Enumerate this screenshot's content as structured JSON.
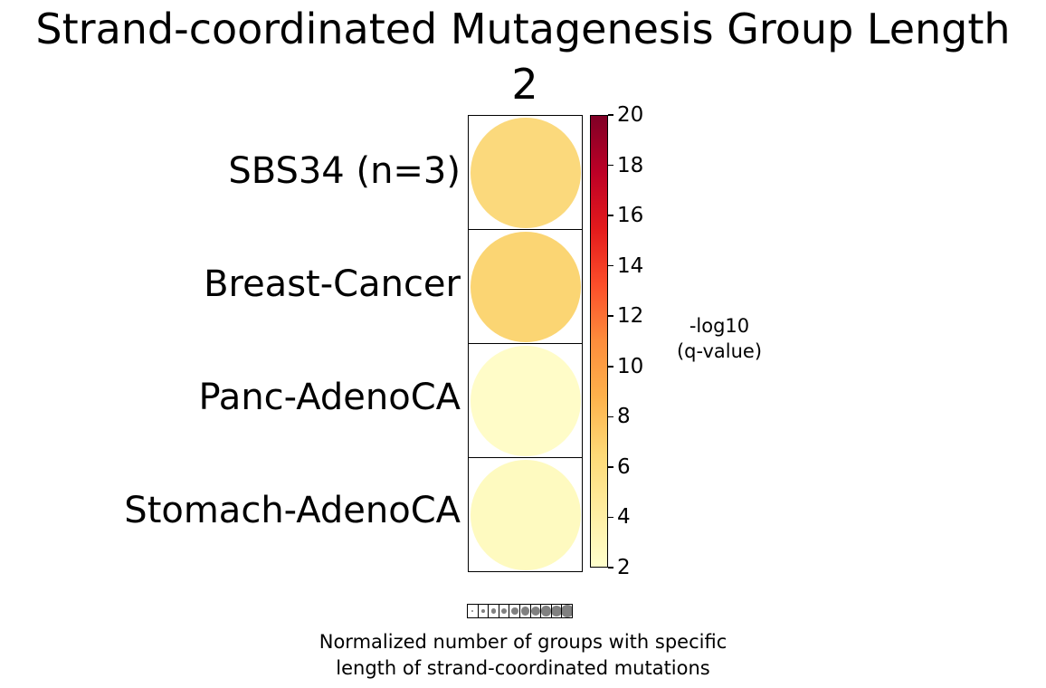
{
  "chart_data": {
    "type": "heatmap",
    "title": "Strand-coordinated Mutagenesis Group Length",
    "column_label": "2",
    "value_label": "-log10 (q-value)",
    "rows": [
      {
        "label": "SBS34 (n=3)",
        "neg_log10_qvalue_est": 7.5,
        "dot_size_normalized": 1.0,
        "color": "#fbd97c"
      },
      {
        "label": "Breast-Cancer",
        "neg_log10_qvalue_est": 8.0,
        "dot_size_normalized": 1.0,
        "color": "#fbd573"
      },
      {
        "label": "Panc-AdenoCA",
        "neg_log10_qvalue_est": 2.5,
        "dot_size_normalized": 1.0,
        "color": "#fffcc8"
      },
      {
        "label": "Stomach-AdenoCA",
        "neg_log10_qvalue_est": 3.0,
        "dot_size_normalized": 1.0,
        "color": "#fefac0"
      }
    ],
    "colorbar": {
      "label_line1": "-log10",
      "label_line2": "(q-value)",
      "range": [
        2,
        20
      ],
      "ticks": [
        2,
        4,
        6,
        8,
        10,
        12,
        14,
        16,
        18,
        20
      ],
      "colormap_name": "YlOrRd",
      "gradient_stops_top_to_bottom": [
        "#800026",
        "#bd0026",
        "#e31a1c",
        "#fc4e2a",
        "#fd8d3c",
        "#feb24c",
        "#fed976",
        "#ffeda0",
        "#ffffcc"
      ]
    },
    "size_legend": {
      "caption_line1": "Normalized number of groups with specific",
      "caption_line2": "length of strand-coordinated mutations",
      "dot_color": "#808080",
      "relative_sizes": [
        0.18,
        0.29,
        0.4,
        0.51,
        0.62,
        0.7,
        0.78,
        0.86,
        0.95,
        1.08
      ]
    },
    "legend_position": "right",
    "grid": "on"
  }
}
